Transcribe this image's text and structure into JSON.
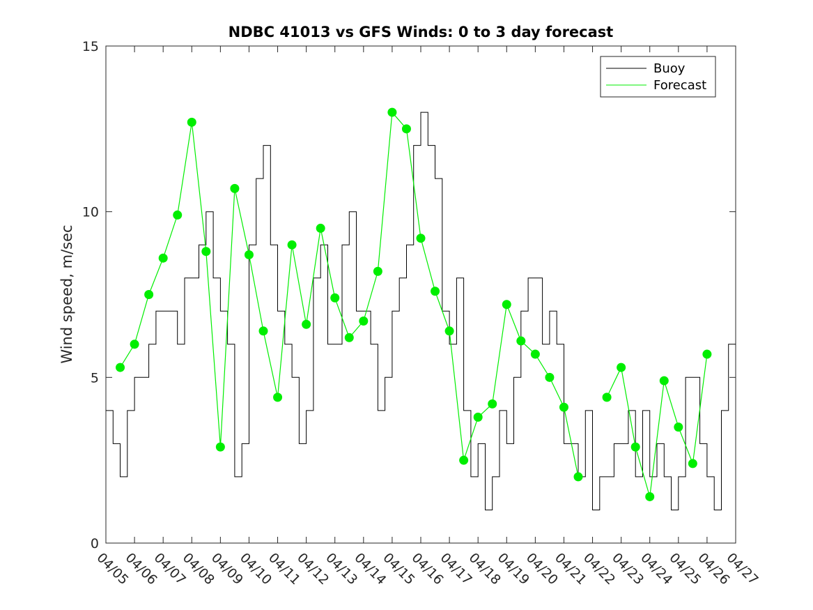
{
  "chart_data": {
    "type": "line",
    "title": "NDBC 41013 vs GFS Winds: 0 to 3 day forecast",
    "xlabel": "",
    "ylabel": "Wind speed, m/sec",
    "ylim": [
      0,
      15
    ],
    "yticks": [
      0,
      5,
      10,
      15
    ],
    "xlim": [
      "04/05",
      "04/27"
    ],
    "xtick_labels": [
      "04/05",
      "04/06",
      "04/07",
      "04/08",
      "04/09",
      "04/10",
      "04/11",
      "04/12",
      "04/13",
      "04/14",
      "04/15",
      "04/16",
      "04/17",
      "04/18",
      "04/19",
      "04/20",
      "04/21",
      "04/22",
      "04/23",
      "04/24",
      "04/25",
      "04/26",
      "04/27"
    ],
    "grid": false,
    "legend": {
      "placement": "top-right",
      "entries": [
        "Buoy",
        "Forecast"
      ]
    },
    "colors": {
      "buoy": "#000000",
      "forecast": "#00ee00"
    },
    "series": [
      {
        "name": "Buoy",
        "x": [
          "04/05 00:00",
          "04/05 06:00",
          "04/05 12:00",
          "04/05 18:00",
          "04/06 00:00",
          "04/06 06:00",
          "04/06 12:00",
          "04/06 18:00",
          "04/07 00:00",
          "04/07 06:00",
          "04/07 12:00",
          "04/07 18:00",
          "04/08 00:00",
          "04/08 06:00",
          "04/08 12:00",
          "04/08 18:00",
          "04/09 00:00",
          "04/09 06:00",
          "04/09 12:00",
          "04/09 18:00",
          "04/10 00:00",
          "04/10 06:00",
          "04/10 12:00",
          "04/10 18:00",
          "04/11 00:00",
          "04/11 06:00",
          "04/11 12:00",
          "04/11 18:00",
          "04/12 00:00",
          "04/12 06:00",
          "04/12 12:00",
          "04/12 18:00",
          "04/13 00:00",
          "04/13 06:00",
          "04/13 12:00",
          "04/13 18:00",
          "04/14 00:00",
          "04/14 06:00",
          "04/14 12:00",
          "04/14 18:00",
          "04/15 00:00",
          "04/15 06:00",
          "04/15 12:00",
          "04/15 18:00",
          "04/16 00:00",
          "04/16 06:00",
          "04/16 12:00",
          "04/16 18:00",
          "04/17 00:00",
          "04/17 06:00",
          "04/17 12:00",
          "04/17 18:00",
          "04/18 00:00",
          "04/18 06:00",
          "04/18 12:00",
          "04/18 18:00",
          "04/19 00:00",
          "04/19 06:00",
          "04/19 12:00",
          "04/19 18:00",
          "04/20 00:00",
          "04/20 06:00",
          "04/20 12:00",
          "04/20 18:00",
          "04/21 00:00",
          "04/21 06:00",
          "04/21 12:00",
          "04/21 18:00",
          "04/22 00:00",
          "04/22 06:00",
          "04/22 12:00",
          "04/22 18:00",
          "04/23 00:00",
          "04/23 06:00",
          "04/23 12:00",
          "04/23 18:00",
          "04/24 00:00",
          "04/24 06:00",
          "04/24 12:00",
          "04/24 18:00",
          "04/25 00:00",
          "04/25 06:00",
          "04/25 12:00",
          "04/25 18:00",
          "04/26 00:00",
          "04/26 06:00",
          "04/26 12:00",
          "04/26 18:00"
        ],
        "values": [
          4,
          3,
          2,
          4,
          5,
          5,
          6,
          7,
          7,
          7,
          6,
          8,
          8,
          9,
          10,
          8,
          7,
          6,
          2,
          3,
          9,
          11,
          12,
          9,
          7,
          6,
          5,
          3,
          4,
          8,
          9,
          6,
          6,
          9,
          10,
          7,
          7,
          6,
          4,
          5,
          7,
          8,
          9,
          12,
          13,
          12,
          11,
          7,
          6,
          8,
          4,
          2,
          3,
          1,
          2,
          4,
          3,
          5,
          7,
          8,
          8,
          6,
          7,
          6,
          3,
          3,
          2,
          4,
          1,
          2,
          2,
          3,
          3,
          4,
          2,
          4,
          2,
          3,
          2,
          1,
          2,
          5,
          5,
          3,
          2,
          1,
          4,
          6
        ]
      },
      {
        "name": "Forecast",
        "x": [
          "04/05 12:00",
          "04/06 00:00",
          "04/06 12:00",
          "04/07 00:00",
          "04/07 12:00",
          "04/08 00:00",
          "04/08 12:00",
          "04/09 00:00",
          "04/09 12:00",
          "04/10 00:00",
          "04/10 12:00",
          "04/11 00:00",
          "04/11 12:00",
          "04/12 00:00",
          "04/12 12:00",
          "04/13 00:00",
          "04/13 12:00",
          "04/14 00:00",
          "04/14 12:00",
          "04/15 00:00",
          "04/15 12:00",
          "04/16 00:00",
          "04/16 12:00",
          "04/17 00:00",
          "04/17 12:00",
          "04/18 00:00",
          "04/18 12:00",
          "04/19 00:00",
          "04/19 12:00",
          "04/20 00:00",
          "04/20 12:00",
          "04/21 00:00",
          "04/21 12:00",
          "04/22 00:00",
          "04/22 12:00",
          "04/23 00:00",
          "04/23 12:00",
          "04/24 00:00",
          "04/24 12:00",
          "04/25 00:00",
          "04/25 12:00",
          "04/26 00:00"
        ],
        "values": [
          5.3,
          6.0,
          7.5,
          8.6,
          9.9,
          12.7,
          8.8,
          2.9,
          10.7,
          8.7,
          6.4,
          4.4,
          9.0,
          6.6,
          9.5,
          7.4,
          6.2,
          6.7,
          8.2,
          13.0,
          12.5,
          9.2,
          7.6,
          6.4,
          2.5,
          3.8,
          4.2,
          7.2,
          6.1,
          5.7,
          5.0,
          4.1,
          2.0,
          null,
          4.4,
          5.3,
          2.9,
          1.4,
          4.9,
          3.5,
          2.4,
          5.7
        ],
        "markers": true
      }
    ]
  }
}
